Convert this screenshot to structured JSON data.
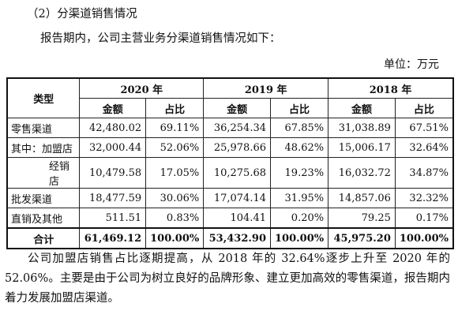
{
  "heading": "（2）分渠道销售情况",
  "intro": "报告期内，公司主营业务分渠道销售情况如下：",
  "unit": "单位：万元",
  "table": {
    "type_header": "类型",
    "years": [
      "2020 年",
      "2019 年",
      "2018 年"
    ],
    "sub_headers": [
      "金额",
      "占比",
      "金额",
      "占比",
      "金额",
      "占比"
    ],
    "rows": [
      {
        "label": "零售渠道",
        "indent": false,
        "cells": [
          "42,480.02",
          "69.11%",
          "36,254.34",
          "67.85%",
          "31,038.89",
          "67.51%"
        ]
      },
      {
        "label": "其中：加盟店",
        "indent": false,
        "cells": [
          "32,000.44",
          "52.06%",
          "25,978.66",
          "48.62%",
          "15,006.17",
          "32.64%"
        ]
      },
      {
        "label": "经销店",
        "indent": true,
        "cells": [
          "10,479.58",
          "17.05%",
          "10,275.68",
          "19.23%",
          "16,032.72",
          "34.87%"
        ]
      },
      {
        "label": "批发渠道",
        "indent": false,
        "cells": [
          "18,477.59",
          "30.06%",
          "17,074.14",
          "31.95%",
          "14,857.06",
          "32.32%"
        ]
      },
      {
        "label": "直销及其他",
        "indent": false,
        "cells": [
          "511.51",
          "0.83%",
          "104.41",
          "0.20%",
          "79.25",
          "0.17%"
        ]
      }
    ],
    "total": {
      "label": "合计",
      "cells": [
        "61,469.12",
        "100.00%",
        "53,432.90",
        "100.00%",
        "45,975.20",
        "100.00%"
      ]
    }
  },
  "paragraph": "公司加盟店销售占比逐期提高，从 2018 年的 32.64%逐步上升至 2020 年的 52.06%。主要是由于公司为树立良好的品牌形象、建立更加高效的零售渠道，报告期内着力发展加盟店渠道。"
}
